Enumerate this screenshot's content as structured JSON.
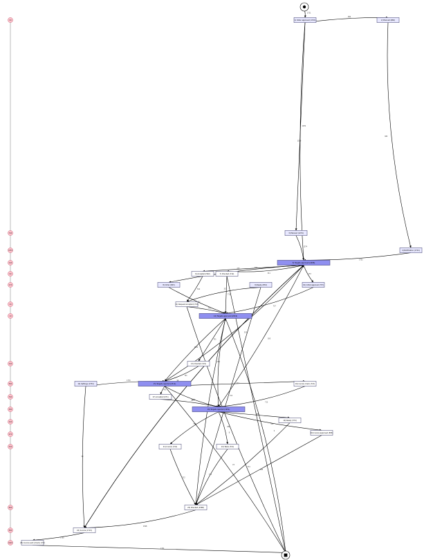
{
  "diagram": {
    "type": "process-map",
    "timeline": {
      "labels": [
        "0d",
        "74d",
        "137d",
        "14d",
        "6d",
        "17d",
        "2d",
        "1d",
        "10d",
        "58d",
        "76d",
        "38d",
        "24d",
        "27d",
        "33d",
        "84d",
        "58d",
        "102d"
      ]
    },
    "nodes": [
      {
        "id": "start",
        "kind": "start"
      },
      {
        "id": "end",
        "kind": "end"
      },
      {
        "id": "n1",
        "label": "1) Order approved (1721)",
        "fill": "#e8e8ff"
      },
      {
        "id": "n2",
        "label": "2) Planned (682)",
        "fill": "#e8e8ff"
      },
      {
        "id": "n3",
        "label": "3) Planned (1274)",
        "fill": "#e8e8ff"
      },
      {
        "id": "n4",
        "label": "4) Notification (1721)",
        "fill": "#e8e8ff"
      },
      {
        "id": "n5",
        "label": "5) Targets approved (2486)",
        "fill": "#8f8ff0"
      },
      {
        "id": "n6",
        "label": "6) Accepted (592)",
        "fill": "#ffffff"
      },
      {
        "id": "n7",
        "label": "7) Checked (712)",
        "fill": "#ffffff"
      },
      {
        "id": "n8",
        "label": "8) Order (603)",
        "fill": "#e8e8ff"
      },
      {
        "id": "n9",
        "label": "9) Ready (832)",
        "fill": "#e8e8ff"
      },
      {
        "id": "n10",
        "label": "10) Initial approval (737)",
        "fill": "#e8e8ff"
      },
      {
        "id": "n11",
        "label": "11) Request accepted (713)",
        "fill": "#ffffff"
      },
      {
        "id": "n12",
        "label": "12) Targets approved (2019)",
        "fill": "#8f8ff0"
      },
      {
        "id": "n13",
        "label": "13) Checked (721)",
        "fill": "#ffffff"
      },
      {
        "id": "n14",
        "label": "14) Settings (1754)",
        "fill": "#e8e8ff"
      },
      {
        "id": "n15",
        "label": "15) Targets rejected (2311)",
        "fill": "#8f8ff0"
      },
      {
        "id": "n16",
        "label": "16) Invoice check (713)",
        "fill": "#ffffff"
      },
      {
        "id": "n17",
        "label": "17) Accepted (471)",
        "fill": "#ffffff"
      },
      {
        "id": "n18",
        "label": "18) Targets rejected (1951)",
        "fill": "#8f8ff0"
      },
      {
        "id": "n19",
        "label": "19) Ready (374)",
        "fill": "#ffffff"
      },
      {
        "id": "n20",
        "label": "20) Invoice approved (583)",
        "fill": "#ffffff"
      },
      {
        "id": "n21",
        "label": "21) Invoice (712)",
        "fill": "#ffffff"
      },
      {
        "id": "n22",
        "label": "22) Tasks (712)",
        "fill": "#ffffff"
      },
      {
        "id": "n23",
        "label": "23) Checked (1568)",
        "fill": "#ffffff"
      },
      {
        "id": "n24",
        "label": "24) Invoice (1721)",
        "fill": "#ffffff"
      },
      {
        "id": "n25",
        "label": "25) Invoice sent (check) 1721",
        "fill": "#ffffff"
      }
    ],
    "edges": [
      {
        "from": "start",
        "to": "n1",
        "label": "1721"
      },
      {
        "from": "n1",
        "to": "n2",
        "label": "682"
      },
      {
        "from": "n1",
        "to": "n3",
        "label": "1039"
      },
      {
        "from": "n1",
        "to": "n5",
        "label": "1039"
      },
      {
        "from": "n2",
        "to": "n4",
        "label": "682"
      },
      {
        "from": "n3",
        "to": "n5",
        "label": "1274"
      },
      {
        "from": "n4",
        "to": "n5",
        "label": "1721"
      },
      {
        "from": "n5",
        "to": "n6",
        "label": "592"
      },
      {
        "from": "n5",
        "to": "n8",
        "label": "233"
      },
      {
        "from": "n5",
        "to": "n10",
        "label": "357"
      },
      {
        "from": "n5",
        "to": "n7",
        "label": "311"
      },
      {
        "from": "n6",
        "to": "n11",
        "label": "592"
      },
      {
        "from": "n7",
        "to": "n12",
        "label": "712"
      },
      {
        "from": "n8",
        "to": "n12",
        "label": "421"
      },
      {
        "from": "n9",
        "to": "n11",
        "label": "325"
      },
      {
        "from": "n10",
        "to": "n12",
        "label": "737"
      },
      {
        "from": "n11",
        "to": "n12",
        "label": "713"
      },
      {
        "from": "n12",
        "to": "n13",
        "label": "721"
      },
      {
        "from": "n12",
        "to": "n15",
        "label": "1002"
      },
      {
        "from": "n12",
        "to": "n18",
        "label": "296"
      },
      {
        "from": "n13",
        "to": "n15",
        "label": "721"
      },
      {
        "from": "n14",
        "to": "n15",
        "label": "1754"
      },
      {
        "from": "n15",
        "to": "n16",
        "label": "713"
      },
      {
        "from": "n15",
        "to": "n17",
        "label": "471"
      },
      {
        "from": "n15",
        "to": "n18",
        "label": "1127"
      },
      {
        "from": "n16",
        "to": "n18",
        "label": "713"
      },
      {
        "from": "n17",
        "to": "n18",
        "label": "471"
      },
      {
        "from": "n18",
        "to": "n19",
        "label": "374"
      },
      {
        "from": "n18",
        "to": "n20",
        "label": "583"
      },
      {
        "from": "n18",
        "to": "n21",
        "label": "712"
      },
      {
        "from": "n18",
        "to": "n22",
        "label": "282"
      },
      {
        "from": "n19",
        "to": "n23",
        "label": "374"
      },
      {
        "from": "n20",
        "to": "n23",
        "label": "583"
      },
      {
        "from": "n21",
        "to": "n23",
        "label": "712"
      },
      {
        "from": "n22",
        "to": "n23",
        "label": "712"
      },
      {
        "from": "n23",
        "to": "n24",
        "label": "1568"
      },
      {
        "from": "n24",
        "to": "n25",
        "label": "1721"
      },
      {
        "from": "n25",
        "to": "end",
        "label": "1721"
      },
      {
        "from": "n18",
        "to": "n5",
        "label": "160"
      },
      {
        "from": "n15",
        "to": "n5",
        "label": "233"
      },
      {
        "from": "n24",
        "to": "n5",
        "label": "22"
      },
      {
        "from": "n23",
        "to": "n12",
        "label": "85"
      },
      {
        "from": "n9",
        "to": "n23",
        "label": "311"
      },
      {
        "from": "n14",
        "to": "n24",
        "label": "93"
      },
      {
        "from": "n5",
        "to": "n24",
        "label": "15"
      },
      {
        "from": "n12",
        "to": "end",
        "label": "9"
      },
      {
        "from": "n15",
        "to": "end",
        "label": "22"
      },
      {
        "from": "n7",
        "to": "end",
        "label": "4"
      },
      {
        "from": "n11",
        "to": "end",
        "label": "8"
      }
    ]
  }
}
